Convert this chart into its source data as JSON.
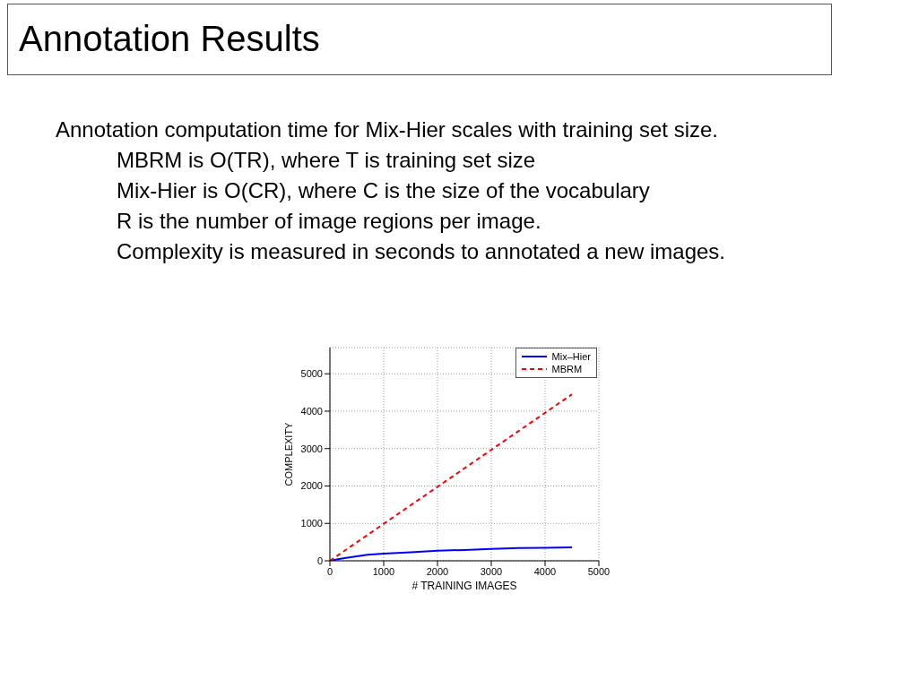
{
  "chart_data": {
    "type": "line",
    "title": "Annotation Results",
    "annotations": [
      "Annotation computation time for Mix-Hier scales with training set size.",
      "MBRM is O(TR), where T is training set size",
      "Mix-Hier is O(CR), where C is the size of the vocabulary",
      "R is the number of image regions per image.",
      "Complexity is measured in seconds to annotated a new images."
    ],
    "xlabel": "# TRAINING IMAGES",
    "ylabel": "COMPLEXITY",
    "series": [
      {
        "name": "Mix–Hier",
        "color": "#0000ff",
        "line_style": "solid",
        "x": [
          0,
          150,
          300,
          500,
          700,
          1000,
          1500,
          2000,
          2500,
          3000,
          3500,
          4000,
          4500
        ],
        "values": [
          0,
          40,
          80,
          120,
          160,
          190,
          230,
          270,
          290,
          320,
          340,
          350,
          360
        ]
      },
      {
        "name": "MBRM",
        "color": "#ff0000",
        "line_style": "dashed",
        "x": [
          0,
          4500
        ],
        "values": [
          0,
          4450
        ]
      }
    ],
    "xlim": [
      0,
      5000
    ],
    "xticks": [
      0,
      1000,
      2000,
      3000,
      4000,
      5000
    ],
    "ylim": [
      0,
      5700
    ],
    "yticks": [
      0,
      1000,
      2000,
      3000,
      4000,
      5000
    ],
    "grid": true,
    "legend": "top right"
  }
}
